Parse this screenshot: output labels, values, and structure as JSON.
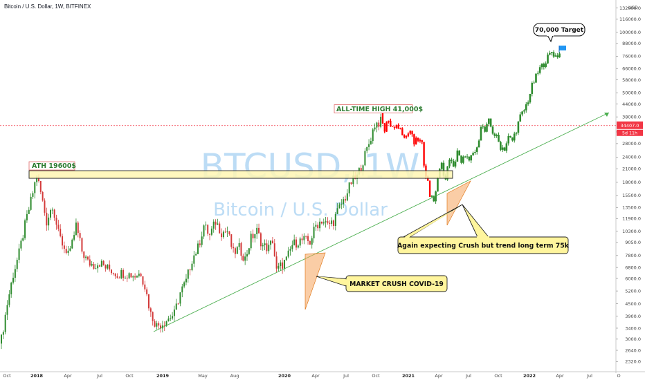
{
  "header": {
    "title": "Bitcoin / U.S. Dollar, 1W, BITFINEX"
  },
  "watermark": {
    "symbol": "BTCUSD, 1W",
    "name": "Bitcoin / U.S. Dollar"
  },
  "colors": {
    "up": "#2e8b2e",
    "down": "#d33a3a",
    "projection": "#ff0000",
    "trendline": "#4caf50",
    "ath_band_fill": "#fff6b3",
    "ath_band_stroke": "#333333",
    "wedge": "#f5a45c",
    "callout_fill": "#fff59d",
    "price_tag": "#f23645",
    "flag": "#2196f3"
  },
  "chart_data": {
    "type": "candlestick",
    "title": "Bitcoin / U.S. Dollar, 1W, BITFINEX",
    "y_scale": "log",
    "ylim": [
      2100,
      140000
    ],
    "y_unit": "USD",
    "y_ticks": [
      "132000.0",
      "116000.0",
      "100000.0",
      "88000.0",
      "76000.0",
      "66000.0",
      "58000.0",
      "50000.0",
      "44000.0",
      "38000.0",
      "32000.0",
      "28000.0",
      "24000.0",
      "21000.0",
      "18000.0",
      "15500.0",
      "13500.0",
      "11900.0",
      "10300.0",
      "9050.0",
      "7800.0",
      "6800.0",
      "6000.0",
      "5200.0",
      "4500.0",
      "3900.0",
      "3400.0",
      "3000.0",
      "2640.0",
      "2320.0"
    ],
    "x_ticks": [
      "Oct",
      "2018",
      "Apr",
      "Jul",
      "Oct",
      "2019",
      "May",
      "Aug",
      "2020",
      "Apr",
      "Jul",
      "Oct",
      "2021",
      "Apr",
      "Jul",
      "Oct",
      "2022",
      "Apr",
      "Jul",
      "O"
    ],
    "x_ticks_bold": [
      "2018",
      "2019",
      "2020",
      "2021",
      "2022"
    ],
    "current_price": {
      "label": "34407.0",
      "value": 34407,
      "countdown": "5d 11h"
    },
    "anchors": [
      [
        0,
        3000
      ],
      [
        3,
        4500
      ],
      [
        6,
        6300
      ],
      [
        9,
        8000
      ],
      [
        12,
        11000
      ],
      [
        15,
        14500
      ],
      [
        18,
        19600
      ],
      [
        20,
        16000
      ],
      [
        23,
        11500
      ],
      [
        26,
        14000
      ],
      [
        29,
        10000
      ],
      [
        32,
        8500
      ],
      [
        35,
        8000
      ],
      [
        38,
        11000
      ],
      [
        41,
        8200
      ],
      [
        44,
        7200
      ],
      [
        47,
        7000
      ],
      [
        50,
        7200
      ],
      [
        53,
        6800
      ],
      [
        56,
        6600
      ],
      [
        59,
        6300
      ],
      [
        62,
        6400
      ],
      [
        65,
        6300
      ],
      [
        68,
        6200
      ],
      [
        71,
        6400
      ],
      [
        73,
        5500
      ],
      [
        76,
        4000
      ],
      [
        79,
        3500
      ],
      [
        82,
        3600
      ],
      [
        85,
        3800
      ],
      [
        88,
        4000
      ],
      [
        91,
        5100
      ],
      [
        94,
        5800
      ],
      [
        97,
        7500
      ],
      [
        100,
        8500
      ],
      [
        103,
        11000
      ],
      [
        106,
        9800
      ],
      [
        109,
        11500
      ],
      [
        112,
        10200
      ],
      [
        115,
        10300
      ],
      [
        118,
        8000
      ],
      [
        121,
        8500
      ],
      [
        124,
        7500
      ],
      [
        127,
        9500
      ],
      [
        130,
        10300
      ],
      [
        133,
        8700
      ],
      [
        136,
        8500
      ],
      [
        138,
        9300
      ],
      [
        140,
        6500
      ],
      [
        142,
        6900
      ],
      [
        145,
        7400
      ],
      [
        148,
        8800
      ],
      [
        151,
        9200
      ],
      [
        154,
        9300
      ],
      [
        157,
        9100
      ],
      [
        160,
        11000
      ],
      [
        163,
        11700
      ],
      [
        166,
        11000
      ],
      [
        169,
        11600
      ],
      [
        172,
        13500
      ],
      [
        175,
        15200
      ],
      [
        178,
        18000
      ],
      [
        181,
        19200
      ],
      [
        184,
        23000
      ],
      [
        187,
        28000
      ],
      [
        190,
        35000
      ],
      [
        193,
        36000
      ]
    ],
    "projection": [
      [
        193,
        40500
      ],
      [
        194,
        36500
      ],
      [
        195,
        33000
      ],
      [
        196,
        36000
      ],
      [
        198,
        34500
      ],
      [
        200,
        33000
      ],
      [
        202,
        34000
      ],
      [
        204,
        32000
      ],
      [
        206,
        30500
      ],
      [
        208,
        32500
      ],
      [
        210,
        28000
      ],
      [
        212,
        29500
      ],
      [
        214,
        27500
      ],
      [
        215,
        22500
      ],
      [
        216,
        20000
      ],
      [
        217,
        18000
      ],
      [
        218,
        15500
      ],
      [
        219,
        15800
      ],
      [
        220,
        14000
      ],
      [
        221,
        16500
      ],
      [
        222,
        19000
      ],
      [
        224,
        22000
      ],
      [
        226,
        18500
      ],
      [
        228,
        24000
      ],
      [
        230,
        21000
      ],
      [
        232,
        26000
      ],
      [
        234,
        22000
      ],
      [
        236,
        25000
      ],
      [
        238,
        22500
      ],
      [
        240,
        25000
      ],
      [
        242,
        26000
      ],
      [
        244,
        35000
      ],
      [
        246,
        32000
      ],
      [
        248,
        36000
      ],
      [
        250,
        32000
      ],
      [
        252,
        30000
      ],
      [
        254,
        27000
      ],
      [
        256,
        26500
      ],
      [
        258,
        30000
      ],
      [
        260,
        29000
      ],
      [
        262,
        33000
      ],
      [
        264,
        38000
      ],
      [
        266,
        41000
      ],
      [
        268,
        46000
      ],
      [
        270,
        54000
      ],
      [
        272,
        60000
      ],
      [
        274,
        66000
      ],
      [
        276,
        70000
      ],
      [
        278,
        75000
      ],
      [
        280,
        80000
      ],
      [
        282,
        76000
      ],
      [
        284,
        78000
      ]
    ],
    "ath_2017": {
      "label": "ATH 19600$",
      "value": 19600
    },
    "ath_2021": {
      "label": "ALL-TIME HIGH 41,000$",
      "value": 41000
    },
    "target": {
      "label": "70,000 Target",
      "value": 70000
    },
    "annotations": [
      "MARKET CRUSH COVID-19",
      "Again expecting Crush but trend long term 75k"
    ]
  }
}
